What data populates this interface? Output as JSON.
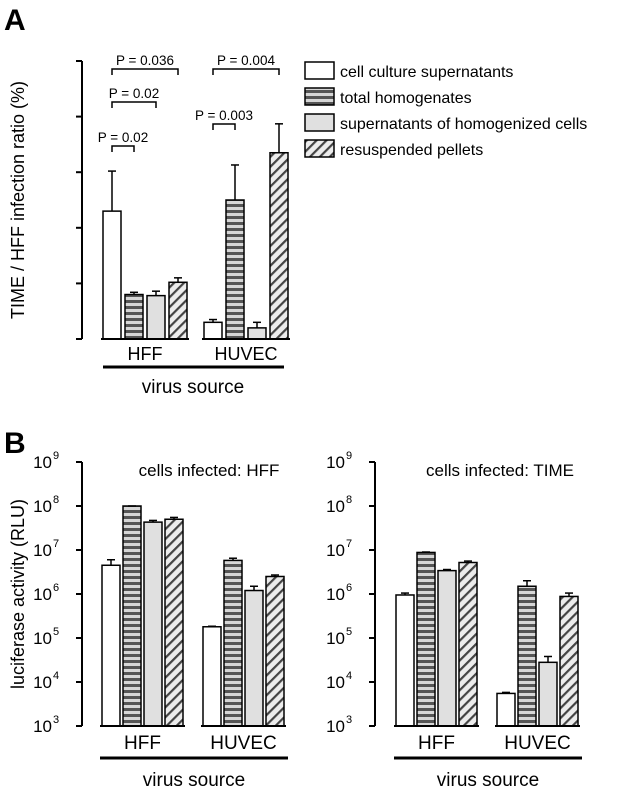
{
  "panels": {
    "a": {
      "letter": "A"
    },
    "b": {
      "letter": "B"
    }
  },
  "legend": {
    "items": [
      {
        "label": "cell culture supernatants",
        "pattern": "white"
      },
      {
        "label": "total homogenates",
        "pattern": "hstripe"
      },
      {
        "label": "supernatants of homogenized cells",
        "pattern": "lightgray"
      },
      {
        "label": "resuspended pellets",
        "pattern": "diag"
      }
    ]
  },
  "colors": {
    "white_fill": "#ffffff",
    "stripe_dark": "#555555",
    "stripe_light": "#d6d6d6",
    "gray_fill": "#e0e0e0",
    "diag_line": "#444444",
    "diag_bg": "#ececec"
  },
  "chart_data": [
    {
      "type": "bar",
      "panel": "A",
      "categories": [
        "HFF",
        "HUVEC"
      ],
      "xlabel": "virus source",
      "ylabel": "TIME / HFF infection ratio (%)",
      "ylim": [
        0,
        50
      ],
      "yticks": [
        "0",
        "10",
        "20",
        "30",
        "40",
        "50"
      ],
      "series": [
        {
          "name": "cell culture supernatants",
          "values": [
            23.0,
            3.0
          ],
          "errors": [
            7.2,
            0.5
          ]
        },
        {
          "name": "total homogenates",
          "values": [
            8.0,
            25.0
          ],
          "errors": [
            0.4,
            6.3
          ]
        },
        {
          "name": "supernatants of homogenized cells",
          "values": [
            7.8,
            2.0
          ],
          "errors": [
            0.8,
            1.0
          ]
        },
        {
          "name": "resuspended pellets",
          "values": [
            10.2,
            33.5
          ],
          "errors": [
            0.8,
            5.2
          ]
        }
      ],
      "significance": [
        {
          "category": "HFF",
          "from": 0,
          "to": 1,
          "label": "P = 0.02"
        },
        {
          "category": "HFF",
          "from": 0,
          "to": 2,
          "label": "P = 0.02"
        },
        {
          "category": "HFF",
          "from": 0,
          "to": 3,
          "label": "P = 0.036"
        },
        {
          "category": "HUVEC",
          "from": 0,
          "to": 1,
          "label": "P = 0.003"
        },
        {
          "category": "HUVEC",
          "from": 0,
          "to": 3,
          "label": "P = 0.004"
        }
      ]
    },
    {
      "type": "bar",
      "panel": "B-left",
      "title": "cells infected: HFF",
      "categories": [
        "HFF",
        "HUVEC"
      ],
      "xlabel": "virus source",
      "ylabel": "luciferase activity (RLU)",
      "yscale": "log",
      "ylim": [
        1000,
        1000000000
      ],
      "series": [
        {
          "name": "cell culture supernatants",
          "values": [
            4500000,
            180000
          ],
          "errors_up": [
            6000000,
            185000
          ]
        },
        {
          "name": "total homogenates",
          "values": [
            100000000,
            5800000
          ],
          "errors_up": [
            100000000,
            6500000
          ]
        },
        {
          "name": "supernatants of homogenized cells",
          "values": [
            43000000,
            1200000
          ],
          "errors_up": [
            47000000,
            1500000
          ]
        },
        {
          "name": "resuspended pellets",
          "values": [
            50000000,
            2500000
          ],
          "errors_up": [
            55000000,
            2700000
          ]
        }
      ]
    },
    {
      "type": "bar",
      "panel": "B-right",
      "title": "cells infected: TIME",
      "categories": [
        "HFF",
        "HUVEC"
      ],
      "xlabel": "virus source",
      "yscale": "log",
      "ylim": [
        1000,
        1000000000
      ],
      "series": [
        {
          "name": "cell culture supernatants",
          "values": [
            950000,
            5500
          ],
          "errors_up": [
            1050000,
            5800
          ]
        },
        {
          "name": "total homogenates",
          "values": [
            8800000,
            1500000
          ],
          "errors_up": [
            9000000,
            2000000
          ]
        },
        {
          "name": "supernatants of homogenized cells",
          "values": [
            3400000,
            28000
          ],
          "errors_up": [
            3600000,
            38000
          ]
        },
        {
          "name": "resuspended pellets",
          "values": [
            5200000,
            880000
          ],
          "errors_up": [
            5600000,
            1050000
          ]
        }
      ]
    }
  ]
}
